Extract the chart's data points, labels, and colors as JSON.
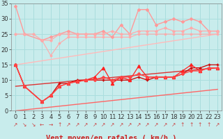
{
  "background_color": "#c8ecec",
  "grid_color": "#aadddd",
  "xlabel": "Vent moyen/en rafales ( km/h )",
  "ylim": [
    0,
    35
  ],
  "yticks": [
    0,
    5,
    10,
    15,
    20,
    25,
    30,
    35
  ],
  "xlim": [
    -0.5,
    23.5
  ],
  "xticks": [
    0,
    1,
    2,
    3,
    4,
    5,
    6,
    7,
    8,
    9,
    10,
    11,
    12,
    13,
    14,
    15,
    16,
    17,
    18,
    19,
    20,
    21,
    22,
    23
  ],
  "series": [
    {
      "x": [
        0,
        1,
        3,
        4,
        5,
        6,
        7,
        8,
        9,
        10,
        11,
        12,
        13,
        14,
        15,
        16,
        17,
        18,
        19,
        20,
        21,
        22,
        23
      ],
      "y": [
        34,
        25,
        23,
        24,
        25,
        26,
        25,
        25,
        25,
        26,
        24,
        28,
        25,
        33,
        33,
        28,
        29,
        30,
        29,
        30,
        29,
        26,
        26
      ],
      "color": "#ff9999",
      "marker": "D",
      "markersize": 2.0,
      "linewidth": 1.0,
      "zorder": 3
    },
    {
      "x": [
        0,
        1,
        2,
        3,
        4,
        5,
        6,
        7,
        8,
        9,
        10,
        11,
        12,
        13,
        14,
        15,
        16,
        17,
        18,
        19,
        20,
        21,
        22,
        23
      ],
      "y": [
        25,
        25,
        25,
        23,
        23,
        25,
        25,
        25,
        25,
        25,
        25,
        26,
        25,
        25,
        26,
        26,
        26,
        27,
        26,
        26,
        27,
        26,
        26,
        26
      ],
      "color": "#ffaaaa",
      "marker": "D",
      "markersize": 1.8,
      "linewidth": 0.9,
      "zorder": 3
    },
    {
      "x": [
        0,
        23
      ],
      "y": [
        15,
        25
      ],
      "color": "#ffbbbb",
      "marker": null,
      "markersize": 0,
      "linewidth": 1.0,
      "zorder": 2
    },
    {
      "x": [
        3,
        4,
        5,
        6,
        7,
        8,
        9,
        10,
        11,
        12,
        13,
        14,
        15,
        16,
        17,
        18,
        19,
        20,
        21,
        22,
        23
      ],
      "y": [
        23,
        18,
        22,
        24,
        24,
        24,
        24,
        24,
        24,
        24,
        24,
        25,
        25,
        25,
        25,
        25,
        25,
        25,
        25,
        25,
        25
      ],
      "color": "#ffaaaa",
      "marker": "D",
      "markersize": 1.5,
      "linewidth": 0.8,
      "zorder": 2
    },
    {
      "x": [
        0,
        23
      ],
      "y": [
        0,
        7
      ],
      "color": "#ff6666",
      "marker": null,
      "markersize": 0,
      "linewidth": 1.0,
      "zorder": 2
    },
    {
      "x": [
        0,
        23
      ],
      "y": [
        8,
        14
      ],
      "color": "#dd3333",
      "marker": null,
      "markersize": 0,
      "linewidth": 1.0,
      "zorder": 2
    },
    {
      "x": [
        0,
        1,
        3,
        4,
        5,
        6,
        7,
        8,
        9,
        10,
        11,
        12,
        13,
        14,
        15,
        16,
        17,
        18,
        19,
        20,
        21,
        22,
        23
      ],
      "y": [
        15,
        8,
        3,
        5,
        9,
        9,
        10,
        10,
        10,
        10,
        10,
        10,
        10,
        11,
        10,
        11,
        11,
        11,
        12,
        14,
        14,
        15,
        15
      ],
      "color": "#cc0000",
      "marker": "+",
      "markersize": 3.5,
      "linewidth": 0.9,
      "zorder": 4
    },
    {
      "x": [
        0,
        1,
        3,
        4,
        5,
        6,
        7,
        8,
        9,
        10,
        11,
        12,
        13,
        14,
        15,
        16,
        17,
        18,
        19,
        20,
        21,
        22,
        23
      ],
      "y": [
        15,
        8,
        3,
        5,
        8,
        9,
        9.5,
        10,
        11,
        14,
        9,
        11,
        10,
        14.5,
        11,
        11,
        11,
        11,
        13,
        15,
        13,
        14,
        14
      ],
      "color": "#ff2222",
      "marker": "^",
      "markersize": 3,
      "linewidth": 0.9,
      "zorder": 4
    },
    {
      "x": [
        0,
        1,
        3,
        4,
        5,
        6,
        7,
        8,
        9,
        10,
        11,
        12,
        13,
        14,
        15,
        16,
        17,
        18,
        19,
        20,
        21,
        22,
        23
      ],
      "y": [
        15,
        8,
        3,
        5,
        8,
        9,
        9.5,
        10,
        10,
        11,
        10,
        11,
        11,
        12,
        11,
        11,
        11,
        11,
        12,
        13,
        13,
        14,
        14
      ],
      "color": "#ff4444",
      "marker": "D",
      "markersize": 2.0,
      "linewidth": 1.0,
      "zorder": 4
    }
  ],
  "wind_arrows": [
    "↗",
    "↘",
    "↘",
    "←",
    "→",
    "↑",
    "↗",
    "↗",
    "↗",
    "↗",
    "↗",
    "↗",
    "↗",
    "↗",
    "↗",
    "↗",
    "↗",
    "↗",
    "↗",
    "↑",
    "↑",
    "↑",
    "↑",
    "↗"
  ],
  "xlabel_fontsize": 7.5,
  "tick_fontsize": 6,
  "arrow_color": "#cc4444"
}
